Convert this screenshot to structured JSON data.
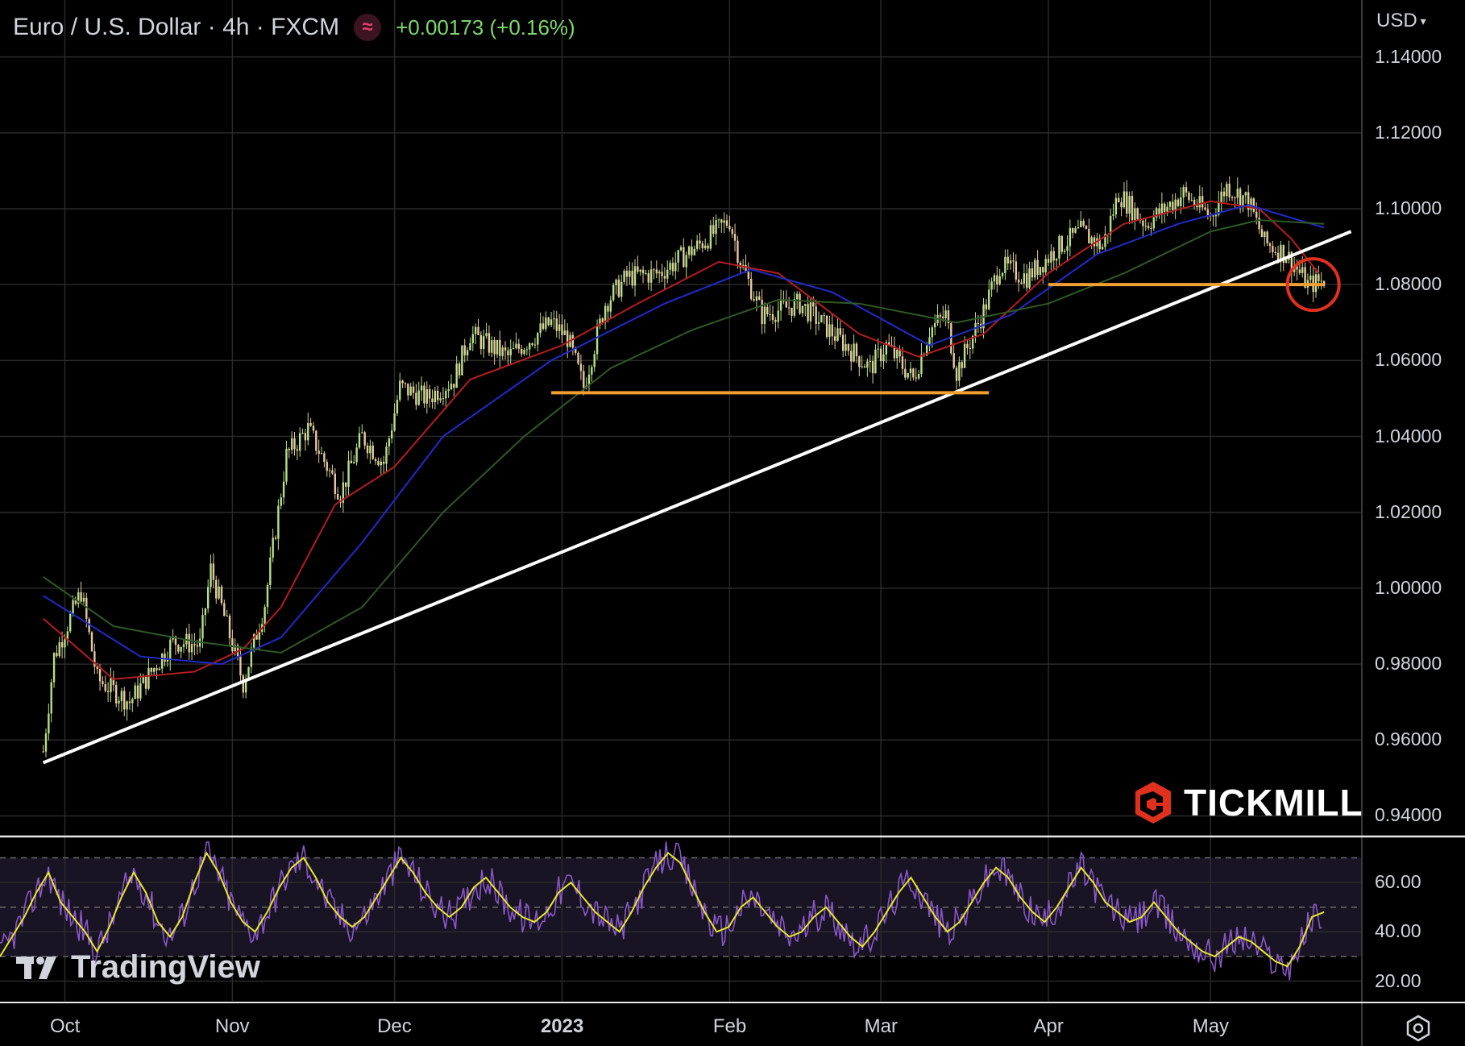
{
  "header": {
    "title": "Euro / U.S. Dollar · 4h · FXCM",
    "indicator_icon": "wave-icon",
    "change": "+0.00173 (+0.16%)",
    "change_color": "#7fd66d"
  },
  "currency": {
    "label": "USD",
    "icon": "chevron-down-icon"
  },
  "logos": {
    "broker": "TICKMILL",
    "platform": "TradingView"
  },
  "colors": {
    "background": "#000000",
    "grid": "#2a2a2a",
    "candle_up": "#b5e08a",
    "candle_down": "#e8c8a0",
    "ma_red": "#b41e1e",
    "ma_blue": "#1e2cc8",
    "ma_green": "#2e5a24",
    "trendline": "#ffffff",
    "support": "#f0a030",
    "circle": "#e0301e",
    "rsi": "#8a56c8",
    "rsi_signal": "#e6e62a",
    "rsi_band": "#191424"
  },
  "chart_data": [
    {
      "type": "candlestick",
      "symbol": "Euro / U.S. Dollar · 4h · FXCM",
      "x_tick_labels": [
        "Oct",
        "Nov",
        "Dec",
        "2023",
        "Feb",
        "Mar",
        "Apr",
        "May"
      ],
      "y_tick_labels": [
        "1.14000",
        "1.12000",
        "1.10000",
        "1.08000",
        "1.06000",
        "1.04000",
        "1.02000",
        "1.00000",
        "0.98000",
        "0.96000",
        "0.94000"
      ],
      "ylim": [
        0.935,
        1.155
      ],
      "x_range": [
        "2022-09-27",
        "2023-05-22"
      ],
      "price_path": [
        [
          "2022-09-27",
          0.957
        ],
        [
          "2022-09-29",
          0.982
        ],
        [
          "2022-10-04",
          0.999
        ],
        [
          "2022-10-07",
          0.976
        ],
        [
          "2022-10-13",
          0.97
        ],
        [
          "2022-10-21",
          0.986
        ],
        [
          "2022-10-26",
          0.985
        ],
        [
          "2022-10-28",
          1.005
        ],
        [
          "2022-11-03",
          0.975
        ],
        [
          "2022-11-07",
          0.996
        ],
        [
          "2022-11-11",
          1.035
        ],
        [
          "2022-11-15",
          1.042
        ],
        [
          "2022-11-21",
          1.025
        ],
        [
          "2022-11-25",
          1.04
        ],
        [
          "2022-11-29",
          1.033
        ],
        [
          "2022-12-02",
          1.053
        ],
        [
          "2022-12-07",
          1.05
        ],
        [
          "2022-12-12",
          1.055
        ],
        [
          "2022-12-15",
          1.067
        ],
        [
          "2022-12-22",
          1.061
        ],
        [
          "2022-12-30",
          1.07
        ],
        [
          "2023-01-02",
          1.066
        ],
        [
          "2023-01-05",
          1.053
        ],
        [
          "2023-01-09",
          1.075
        ],
        [
          "2023-01-13",
          1.082
        ],
        [
          "2023-01-19",
          1.083
        ],
        [
          "2023-01-26",
          1.09
        ],
        [
          "2023-02-01",
          1.097
        ],
        [
          "2023-02-03",
          1.086
        ],
        [
          "2023-02-07",
          1.072
        ],
        [
          "2023-02-14",
          1.075
        ],
        [
          "2023-02-21",
          1.066
        ],
        [
          "2023-02-27",
          1.058
        ],
        [
          "2023-03-02",
          1.064
        ],
        [
          "2023-03-07",
          1.055
        ],
        [
          "2023-03-10",
          1.068
        ],
        [
          "2023-03-13",
          1.072
        ],
        [
          "2023-03-15",
          1.057
        ],
        [
          "2023-03-20",
          1.073
        ],
        [
          "2023-03-23",
          1.085
        ],
        [
          "2023-03-28",
          1.082
        ],
        [
          "2023-04-03",
          1.09
        ],
        [
          "2023-04-07",
          1.094
        ],
        [
          "2023-04-11",
          1.09
        ],
        [
          "2023-04-14",
          1.104
        ],
        [
          "2023-04-19",
          1.096
        ],
        [
          "2023-04-26",
          1.104
        ],
        [
          "2023-05-01",
          1.098
        ],
        [
          "2023-05-04",
          1.106
        ],
        [
          "2023-05-08",
          1.102
        ],
        [
          "2023-05-11",
          1.091
        ],
        [
          "2023-05-15",
          1.088
        ],
        [
          "2023-05-19",
          1.08
        ],
        [
          "2023-05-22",
          1.081
        ]
      ],
      "moving_averages": [
        {
          "color": "#b41e1e",
          "points": [
            [
              "2022-09-27",
              0.992
            ],
            [
              "2022-10-10",
              0.976
            ],
            [
              "2022-10-25",
              0.978
            ],
            [
              "2022-11-03",
              0.984
            ],
            [
              "2022-11-10",
              0.995
            ],
            [
              "2022-11-20",
              1.022
            ],
            [
              "2022-12-01",
              1.032
            ],
            [
              "2022-12-15",
              1.055
            ],
            [
              "2023-01-01",
              1.064
            ],
            [
              "2023-01-15",
              1.075
            ],
            [
              "2023-01-30",
              1.086
            ],
            [
              "2023-02-10",
              1.083
            ],
            [
              "2023-02-25",
              1.067
            ],
            [
              "2023-03-08",
              1.061
            ],
            [
              "2023-03-20",
              1.067
            ],
            [
              "2023-04-01",
              1.083
            ],
            [
              "2023-04-15",
              1.096
            ],
            [
              "2023-05-01",
              1.102
            ],
            [
              "2023-05-10",
              1.1
            ],
            [
              "2023-05-16",
              1.092
            ],
            [
              "2023-05-21",
              1.083
            ]
          ]
        },
        {
          "color": "#1e2cc8",
          "points": [
            [
              "2022-09-27",
              0.998
            ],
            [
              "2022-10-15",
              0.982
            ],
            [
              "2022-10-30",
              0.98
            ],
            [
              "2022-11-10",
              0.987
            ],
            [
              "2022-11-25",
              1.012
            ],
            [
              "2022-12-10",
              1.04
            ],
            [
              "2022-12-30",
              1.06
            ],
            [
              "2023-01-20",
              1.075
            ],
            [
              "2023-02-05",
              1.084
            ],
            [
              "2023-02-20",
              1.078
            ],
            [
              "2023-03-10",
              1.064
            ],
            [
              "2023-03-25",
              1.072
            ],
            [
              "2023-04-10",
              1.088
            ],
            [
              "2023-04-25",
              1.096
            ],
            [
              "2023-05-08",
              1.101
            ],
            [
              "2023-05-22",
              1.095
            ]
          ]
        },
        {
          "color": "#2e5a24",
          "points": [
            [
              "2022-09-27",
              1.003
            ],
            [
              "2022-10-10",
              0.99
            ],
            [
              "2022-10-25",
              0.986
            ],
            [
              "2022-11-10",
              0.983
            ],
            [
              "2022-11-25",
              0.995
            ],
            [
              "2022-12-10",
              1.02
            ],
            [
              "2022-12-25",
              1.04
            ],
            [
              "2023-01-10",
              1.058
            ],
            [
              "2023-01-25",
              1.068
            ],
            [
              "2023-02-10",
              1.076
            ],
            [
              "2023-02-25",
              1.075
            ],
            [
              "2023-03-15",
              1.07
            ],
            [
              "2023-04-01",
              1.075
            ],
            [
              "2023-04-15",
              1.083
            ],
            [
              "2023-05-01",
              1.094
            ],
            [
              "2023-05-10",
              1.097
            ],
            [
              "2023-05-22",
              1.096
            ]
          ]
        }
      ],
      "trendline": {
        "points": [
          [
            "2022-09-27",
            0.954
          ],
          [
            "2023-05-27",
            1.094
          ]
        ]
      },
      "support_lines": [
        {
          "from": "2022-12-30",
          "to": "2023-03-21",
          "y": 1.0515
        },
        {
          "from": "2023-04-01",
          "to": "2023-05-22",
          "y": 1.08
        }
      ],
      "annotation_circle": {
        "date": "2023-05-20",
        "y": 1.08
      }
    },
    {
      "type": "line",
      "series": [
        {
          "values": [
            30.0,
            38.0,
            46.0,
            56.0,
            64.0,
            52.0,
            46.0,
            40.0,
            32.0,
            42.0,
            54.0,
            64.0,
            56.0,
            44.0,
            38.0,
            46.0,
            60.0,
            72.0,
            64.0,
            52.0,
            44.0,
            40.0,
            48.0,
            58.0,
            66.0,
            70.0,
            62.0,
            52.0,
            46.0,
            42.0,
            46.0,
            54.0,
            62.0,
            70.0,
            64.0,
            56.0,
            50.0,
            46.0,
            50.0,
            58.0,
            62.0,
            56.0,
            50.0,
            46.0,
            44.0,
            48.0,
            56.0,
            60.0,
            54.0,
            48.0,
            44.0,
            40.0,
            48.0,
            58.0,
            66.0,
            72.0,
            68.0,
            58.0,
            48.0,
            40.0,
            42.0,
            50.0,
            54.0,
            48.0,
            42.0,
            38.0,
            40.0,
            46.0,
            50.0,
            44.0,
            38.0,
            34.0,
            40.0,
            48.0,
            56.0,
            62.0,
            54.0,
            46.0,
            40.0,
            44.0,
            52.0,
            60.0,
            66.0,
            62.0,
            54.0,
            48.0,
            44.0,
            50.0,
            58.0,
            66.0,
            60.0,
            52.0,
            48.0,
            44.0,
            46.0,
            52.0,
            46.0,
            40.0,
            36.0,
            32.0,
            30.0,
            34.0,
            38.0,
            36.0,
            32.0,
            28.0,
            26.0,
            34.0,
            46.0,
            48.0
          ]
        }
      ],
      "y_tick_labels": [
        "60.00",
        "40.00",
        "20.00"
      ],
      "ylim": [
        12,
        78
      ],
      "reference_levels": [
        70,
        50,
        30
      ]
    }
  ]
}
